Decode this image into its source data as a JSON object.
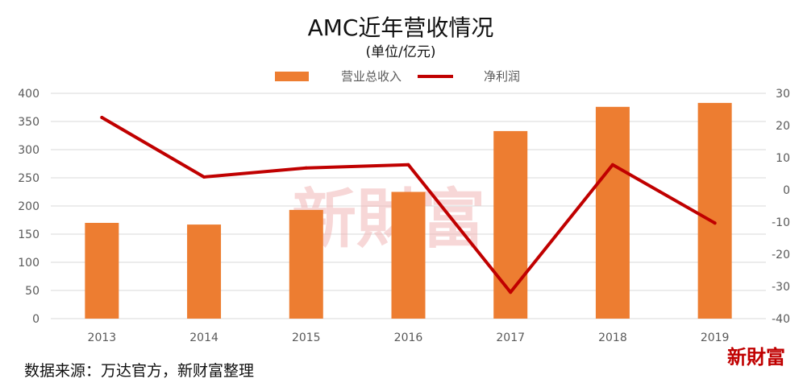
{
  "chart_data": {
    "type": "bar",
    "title": "AMC近年营收情况",
    "subtitle": "(单位/亿元)",
    "categories": [
      "2013",
      "2014",
      "2015",
      "2016",
      "2017",
      "2018",
      "2019"
    ],
    "series": [
      {
        "name": "营业总收入",
        "type": "bar",
        "axis": "left",
        "color": "#ed7d31",
        "values": [
          170,
          167,
          193,
          225,
          333,
          376,
          383
        ]
      },
      {
        "name": "净利润",
        "type": "line",
        "axis": "right",
        "color": "#c00000",
        "values": [
          22.5,
          4,
          6.8,
          7.8,
          -31.8,
          7.8,
          -10.3
        ]
      }
    ],
    "y_left": {
      "min": 0,
      "max": 400,
      "ticks": [
        "0",
        "50",
        "100",
        "150",
        "200",
        "250",
        "300",
        "350",
        "400"
      ]
    },
    "y_right": {
      "min": -40,
      "max": 30,
      "ticks": [
        "-40",
        "-30",
        "-20",
        "-10",
        "0",
        "10",
        "20",
        "30"
      ]
    },
    "grid": true,
    "legend": "top-center"
  },
  "source_text": "数据来源：万达官方，新财富整理",
  "logo_text": "新財富",
  "watermark_text": "新財富"
}
